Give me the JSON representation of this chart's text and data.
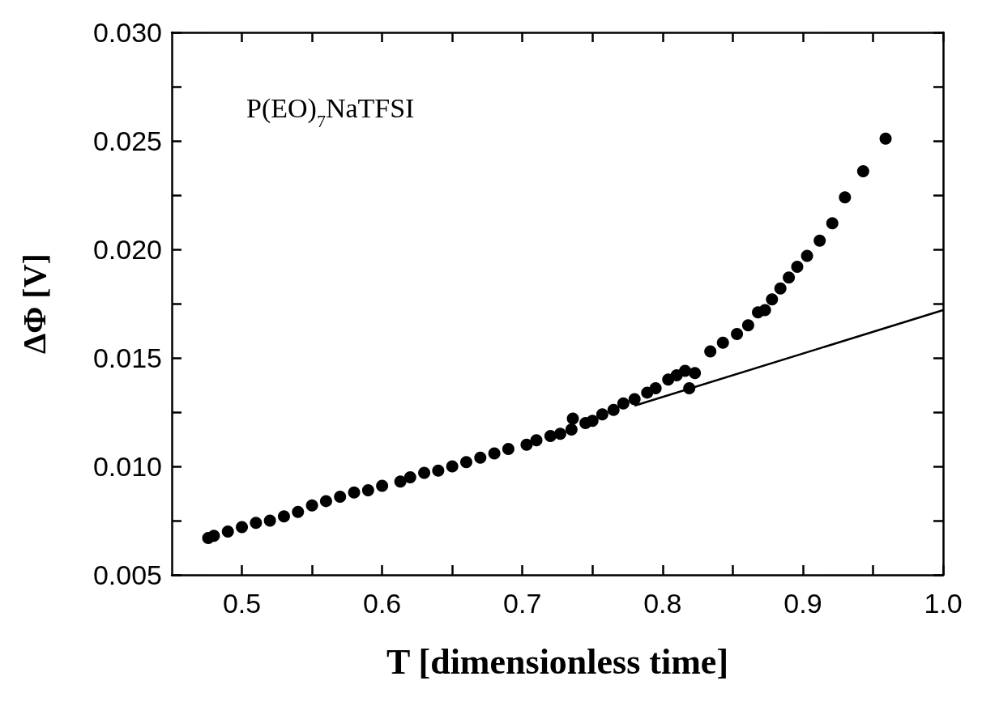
{
  "chart_data": {
    "type": "scatter",
    "xlabel": "T [dimensionless time]",
    "ylabel": "ΔΦ [V]",
    "annotations": [
      "P(EO)$_{7}$NaTFSI"
    ],
    "marker": "circle",
    "xlim": [
      0.45,
      1.0
    ],
    "ylim": [
      0.005,
      0.03
    ],
    "xticks": [
      {
        "value": 0.5,
        "label": "0.5"
      },
      {
        "value": 0.55,
        "label": null
      },
      {
        "value": 0.6,
        "label": "0.6"
      },
      {
        "value": 0.65,
        "label": null
      },
      {
        "value": 0.7,
        "label": "0.7"
      },
      {
        "value": 0.75,
        "label": null
      },
      {
        "value": 0.8,
        "label": "0.8"
      },
      {
        "value": 0.85,
        "label": null
      },
      {
        "value": 0.9,
        "label": "0.9"
      },
      {
        "value": 0.95,
        "label": null
      },
      {
        "value": 1.0,
        "label": "1.0"
      }
    ],
    "yticks": [
      {
        "value": 0.005,
        "label": "0.005"
      },
      {
        "value": 0.0075,
        "label": null
      },
      {
        "value": 0.01,
        "label": "0.010"
      },
      {
        "value": 0.0125,
        "label": null
      },
      {
        "value": 0.015,
        "label": "0.015"
      },
      {
        "value": 0.0175,
        "label": null
      },
      {
        "value": 0.02,
        "label": "0.020"
      },
      {
        "value": 0.0225,
        "label": null
      },
      {
        "value": 0.025,
        "label": "0.025"
      },
      {
        "value": 0.0275,
        "label": null
      },
      {
        "value": 0.03,
        "label": "0.030"
      }
    ],
    "series": [
      {
        "color": "#000000",
        "x": [
          0.476,
          0.48,
          0.49,
          0.5,
          0.51,
          0.52,
          0.53,
          0.54,
          0.55,
          0.56,
          0.57,
          0.58,
          0.59,
          0.6,
          0.613,
          0.62,
          0.63,
          0.64,
          0.65,
          0.66,
          0.67,
          0.68,
          0.69,
          0.703,
          0.71,
          0.72,
          0.727,
          0.735,
          0.736,
          0.745,
          0.75,
          0.757,
          0.765,
          0.772,
          0.78,
          0.789,
          0.795,
          0.804,
          0.81,
          0.816,
          0.819,
          0.823,
          0.834,
          0.843,
          0.853,
          0.861,
          0.868,
          0.873,
          0.878,
          0.884,
          0.89,
          0.896,
          0.903,
          0.912,
          0.921,
          0.93,
          0.943,
          0.959
        ],
        "values": [
          0.0067,
          0.0068,
          0.007,
          0.0072,
          0.0074,
          0.0075,
          0.0077,
          0.0079,
          0.0082,
          0.0084,
          0.0086,
          0.0088,
          0.0089,
          0.0091,
          0.0093,
          0.0095,
          0.0097,
          0.0098,
          0.01,
          0.0102,
          0.0104,
          0.0106,
          0.0108,
          0.011,
          0.0112,
          0.0114,
          0.0115,
          0.0117,
          0.0122,
          0.012,
          0.0121,
          0.0124,
          0.0126,
          0.0129,
          0.0131,
          0.0134,
          0.0136,
          0.014,
          0.0142,
          0.0144,
          0.0136,
          0.0143,
          0.0153,
          0.0157,
          0.0161,
          0.0165,
          0.0171,
          0.0172,
          0.0177,
          0.0182,
          0.0187,
          0.0192,
          0.0197,
          0.0204,
          0.0212,
          0.0224,
          0.0236,
          0.0251
        ]
      },
      {
        "type": "line",
        "color": "#000000",
        "line_style": "solid",
        "marker": "none",
        "x": [
          0.78,
          1.0
        ],
        "values": [
          0.0128,
          0.0172
        ]
      }
    ]
  }
}
